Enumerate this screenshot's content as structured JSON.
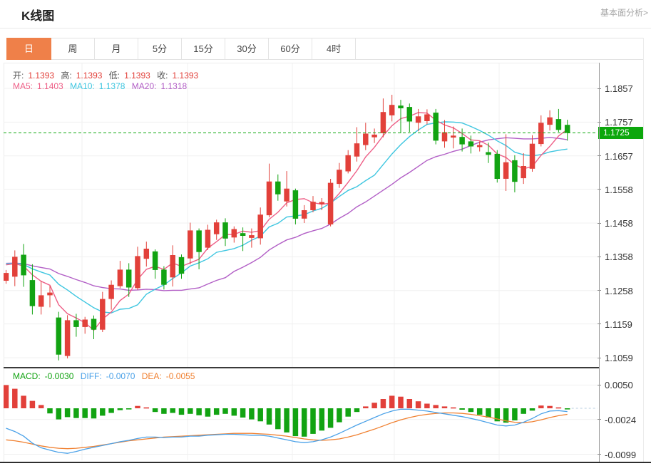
{
  "header": {
    "title": "K线图",
    "analysis_link": "基本面分析>"
  },
  "tabs": {
    "selected_index": 0,
    "items": [
      "日",
      "周",
      "月",
      "5分",
      "15分",
      "30分",
      "60分",
      "4时"
    ]
  },
  "ohlc_bar": {
    "open_label": "开:",
    "open": "1.1393",
    "high_label": "高:",
    "high": "1.1393",
    "low_label": "低:",
    "low": "1.1393",
    "close_label": "收:",
    "close": "1.1393"
  },
  "ma_bar": {
    "ma5_label": "MA5:",
    "ma5": "1.1403",
    "ma10_label": "MA10:",
    "ma10": "1.1378",
    "ma20_label": "MA20:",
    "ma20": "1.1318"
  },
  "price_axis": {
    "labels": [
      "1.1857",
      "1.1757",
      "1.1657",
      "1.1558",
      "1.1458",
      "1.1358",
      "1.1258",
      "1.1159",
      "1.1059"
    ],
    "current_price": "1.1725"
  },
  "macd_bar": {
    "macd_label": "MACD:",
    "macd": "-0.0030",
    "diff_label": "DIFF:",
    "diff": "-0.0070",
    "dea_label": "DEA:",
    "dea": "-0.0055"
  },
  "macd_axis": {
    "labels": [
      "0.0050",
      "-0.0024",
      "-0.0099"
    ]
  },
  "colors": {
    "up": "#e2403a",
    "down": "#12a312",
    "ma5": "#ee5f87",
    "ma10": "#3ec6e0",
    "ma20": "#b25fc6",
    "diff": "#4aa1e8",
    "dea": "#f08030",
    "macd_text": "#12a312",
    "ohlc_value": "#e2403a",
    "accent_tab": "#ef8049",
    "price_badge": "#0ca70c",
    "price_line": "#0ca70c",
    "grid": "#f0f0f0",
    "axis_line": "#9a9a9a"
  },
  "chart_data": {
    "type": "candlestick",
    "title": "K线图 (日)",
    "legend_position": "top-left",
    "grid": true,
    "y_axis": {
      "ticks": [
        1.1857,
        1.1757,
        1.1657,
        1.1558,
        1.1458,
        1.1358,
        1.1258,
        1.1159,
        1.1059
      ],
      "range": [
        1.1021,
        1.1933
      ],
      "current_price": 1.1725
    },
    "ma_periods": [
      5,
      10,
      20
    ],
    "candles_ohlc": [
      [
        1.1287,
        1.1319,
        1.1278,
        1.131
      ],
      [
        1.1299,
        1.1377,
        1.1271,
        1.1358
      ],
      [
        1.1364,
        1.1396,
        1.1269,
        1.1303
      ],
      [
        1.1289,
        1.1336,
        1.1187,
        1.1212
      ],
      [
        1.121,
        1.1286,
        1.1187,
        1.1244
      ],
      [
        1.1244,
        1.1272,
        1.1208,
        1.1252
      ],
      [
        1.1178,
        1.1195,
        1.1051,
        1.1068
      ],
      [
        1.1064,
        1.1185,
        1.1057,
        1.117
      ],
      [
        1.117,
        1.1189,
        1.1121,
        1.115
      ],
      [
        1.115,
        1.118,
        1.113,
        1.1172
      ],
      [
        1.1174,
        1.1184,
        1.1114,
        1.1142
      ],
      [
        1.1142,
        1.1254,
        1.1135,
        1.1233
      ],
      [
        1.1233,
        1.1288,
        1.1201,
        1.1275
      ],
      [
        1.1271,
        1.1346,
        1.1265,
        1.132
      ],
      [
        1.132,
        1.1339,
        1.1239,
        1.1267
      ],
      [
        1.1265,
        1.1388,
        1.126,
        1.136
      ],
      [
        1.1352,
        1.1403,
        1.1329,
        1.1382
      ],
      [
        1.1374,
        1.138,
        1.1293,
        1.1319
      ],
      [
        1.132,
        1.133,
        1.1261,
        1.1275
      ],
      [
        1.1297,
        1.1392,
        1.127,
        1.1363
      ],
      [
        1.1357,
        1.1365,
        1.1293,
        1.1308
      ],
      [
        1.1353,
        1.1459,
        1.1336,
        1.1436
      ],
      [
        1.1436,
        1.1442,
        1.1321,
        1.1372
      ],
      [
        1.1385,
        1.1453,
        1.1378,
        1.1438
      ],
      [
        1.1425,
        1.1468,
        1.1408,
        1.146
      ],
      [
        1.146,
        1.1472,
        1.139,
        1.1412
      ],
      [
        1.1415,
        1.1448,
        1.14,
        1.144
      ],
      [
        1.1428,
        1.1445,
        1.1375,
        1.142
      ],
      [
        1.1414,
        1.1442,
        1.1385,
        1.1422
      ],
      [
        1.1413,
        1.1504,
        1.1394,
        1.1483
      ],
      [
        1.1481,
        1.1634,
        1.1475,
        1.1581
      ],
      [
        1.1581,
        1.1602,
        1.1524,
        1.1543
      ],
      [
        1.1522,
        1.1612,
        1.1507,
        1.156
      ],
      [
        1.1555,
        1.156,
        1.1454,
        1.1471
      ],
      [
        1.1471,
        1.1511,
        1.1458,
        1.1496
      ],
      [
        1.1496,
        1.1538,
        1.149,
        1.1521
      ],
      [
        1.1514,
        1.1532,
        1.1496,
        1.152
      ],
      [
        1.1454,
        1.1589,
        1.1448,
        1.1577
      ],
      [
        1.1574,
        1.1636,
        1.1562,
        1.1616
      ],
      [
        1.1611,
        1.1674,
        1.1605,
        1.1659
      ],
      [
        1.1655,
        1.1742,
        1.164,
        1.1694
      ],
      [
        1.1689,
        1.1755,
        1.1674,
        1.1723
      ],
      [
        1.1712,
        1.1738,
        1.1695,
        1.172
      ],
      [
        1.1724,
        1.1827,
        1.1712,
        1.1787
      ],
      [
        1.1777,
        1.1838,
        1.1759,
        1.1808
      ],
      [
        1.1806,
        1.1823,
        1.1724,
        1.1798
      ],
      [
        1.1802,
        1.1812,
        1.1728,
        1.1759
      ],
      [
        1.1755,
        1.1796,
        1.173,
        1.1774
      ],
      [
        1.176,
        1.1795,
        1.175,
        1.178
      ],
      [
        1.1785,
        1.1796,
        1.1691,
        1.1702
      ],
      [
        1.17,
        1.1763,
        1.1681,
        1.1727
      ],
      [
        1.1711,
        1.1744,
        1.1679,
        1.1717
      ],
      [
        1.1713,
        1.1738,
        1.167,
        1.1691
      ],
      [
        1.17,
        1.1717,
        1.1664,
        1.1685
      ],
      [
        1.1683,
        1.17,
        1.167,
        1.1689
      ],
      [
        1.1668,
        1.1696,
        1.1636,
        1.166
      ],
      [
        1.1663,
        1.1674,
        1.1578,
        1.1589
      ],
      [
        1.1589,
        1.1721,
        1.1553,
        1.1638
      ],
      [
        1.1644,
        1.1659,
        1.1549,
        1.158
      ],
      [
        1.1591,
        1.1665,
        1.1574,
        1.1627
      ],
      [
        1.1619,
        1.1718,
        1.161,
        1.1693
      ],
      [
        1.1692,
        1.1777,
        1.1685,
        1.1755
      ],
      [
        1.1749,
        1.1792,
        1.1732,
        1.1771
      ],
      [
        1.1766,
        1.1796,
        1.1728,
        1.1734
      ],
      [
        1.1749,
        1.1764,
        1.1702,
        1.1725
      ]
    ],
    "macd": {
      "y_ticks": [
        0.005,
        -0.0024,
        -0.0099
      ],
      "histogram": [
        0.005,
        0.0042,
        0.0027,
        0.0016,
        0.0007,
        -0.0011,
        -0.0024,
        -0.0019,
        -0.0021,
        -0.0021,
        -0.0022,
        -0.0016,
        -0.001,
        -0.0004,
        -0.0002,
        0.0005,
        0.0002,
        -0.0008,
        -0.0012,
        -0.001,
        -0.0014,
        -0.0012,
        -0.0015,
        -0.0018,
        -0.0014,
        -0.0012,
        -0.0016,
        -0.002,
        -0.0024,
        -0.0028,
        -0.0035,
        -0.0045,
        -0.0052,
        -0.006,
        -0.0061,
        -0.0055,
        -0.0048,
        -0.0042,
        -0.003,
        -0.0018,
        -0.0008,
        0.0004,
        0.0012,
        0.002,
        0.0027,
        0.0025,
        0.002,
        0.0015,
        0.001,
        0.0007,
        0.0004,
        0.0002,
        -0.0003,
        -0.0008,
        -0.0014,
        -0.002,
        -0.0028,
        -0.0031,
        -0.0026,
        -0.0012,
        -0.0005,
        0.0006,
        0.0005,
        0.0002,
        -0.0002
      ],
      "diff": [
        -0.0043,
        -0.005,
        -0.006,
        -0.0075,
        -0.0085,
        -0.009,
        -0.0095,
        -0.0097,
        -0.0093,
        -0.0088,
        -0.0084,
        -0.008,
        -0.0076,
        -0.0072,
        -0.0069,
        -0.0065,
        -0.0062,
        -0.0062,
        -0.0063,
        -0.0062,
        -0.0062,
        -0.006,
        -0.006,
        -0.0058,
        -0.0057,
        -0.0056,
        -0.0056,
        -0.0057,
        -0.0058,
        -0.0058,
        -0.006,
        -0.0064,
        -0.0068,
        -0.0072,
        -0.0074,
        -0.0072,
        -0.0068,
        -0.0062,
        -0.0054,
        -0.0045,
        -0.0036,
        -0.0028,
        -0.002,
        -0.0012,
        -0.0006,
        -0.0002,
        -0.0002,
        -0.0004,
        -0.0006,
        -0.0009,
        -0.0012,
        -0.0015,
        -0.0018,
        -0.0022,
        -0.0026,
        -0.0031,
        -0.0036,
        -0.0038,
        -0.0036,
        -0.003,
        -0.0022,
        -0.0012,
        -0.0006,
        -0.0005,
        -0.0007
      ],
      "dea": [
        -0.0068,
        -0.007,
        -0.0073,
        -0.0077,
        -0.0081,
        -0.0084,
        -0.0086,
        -0.0087,
        -0.0086,
        -0.0084,
        -0.0082,
        -0.0079,
        -0.0076,
        -0.0073,
        -0.007,
        -0.0068,
        -0.0066,
        -0.0064,
        -0.0062,
        -0.0061,
        -0.006,
        -0.0059,
        -0.0058,
        -0.0057,
        -0.0056,
        -0.0055,
        -0.0054,
        -0.0054,
        -0.0054,
        -0.0055,
        -0.0056,
        -0.0058,
        -0.006,
        -0.0063,
        -0.0066,
        -0.0068,
        -0.0069,
        -0.0068,
        -0.0066,
        -0.0062,
        -0.0057,
        -0.0051,
        -0.0045,
        -0.0038,
        -0.0031,
        -0.0025,
        -0.002,
        -0.0016,
        -0.0013,
        -0.0011,
        -0.001,
        -0.001,
        -0.0011,
        -0.0013,
        -0.0016,
        -0.0019,
        -0.0023,
        -0.0027,
        -0.003,
        -0.0031,
        -0.0029,
        -0.0025,
        -0.002,
        -0.0016,
        -0.0013
      ]
    }
  }
}
